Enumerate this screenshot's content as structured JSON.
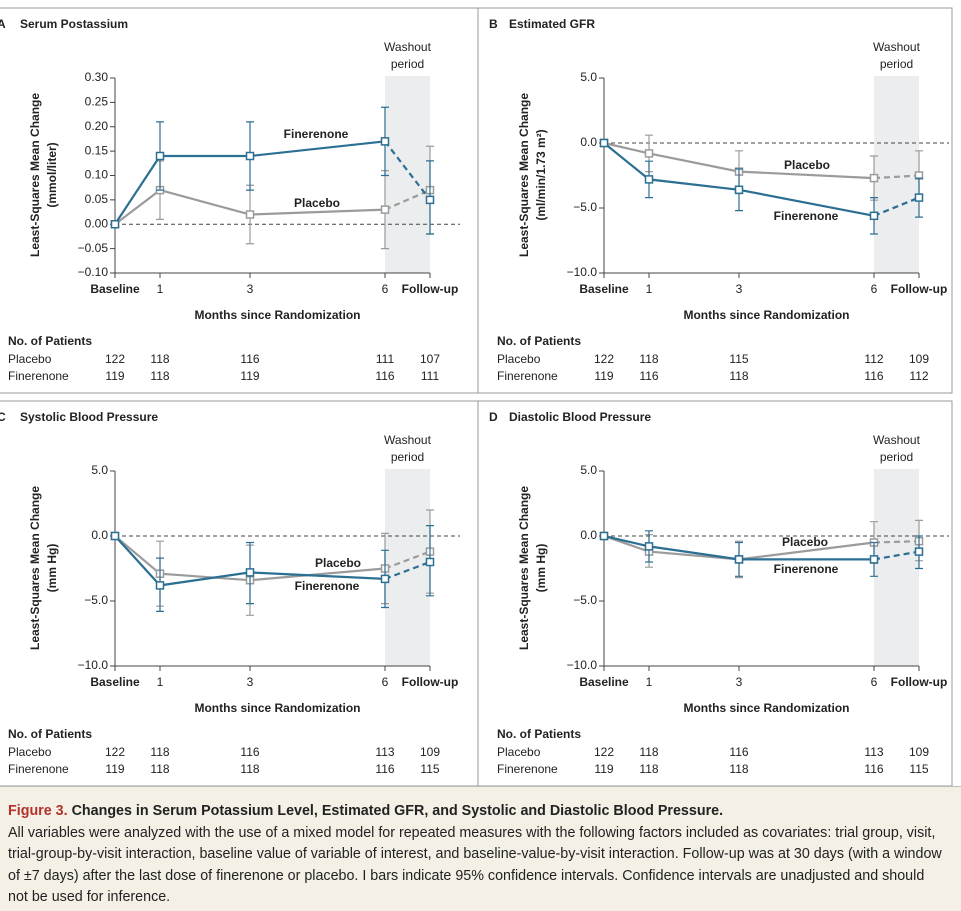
{
  "chart_data": [
    {
      "type": "line",
      "panel": "A",
      "title": "Serum Postassium",
      "ylabel": [
        "Least-Squares Mean Change",
        "(mmol/liter)"
      ],
      "xlabel": "Months since Randomization",
      "x": [
        0,
        1,
        3,
        6,
        7
      ],
      "xlim": [
        0,
        7
      ],
      "xticks": [
        {
          "value": 0,
          "label": "Baseline"
        },
        1,
        3,
        6,
        {
          "value": 7,
          "label": "Follow-up"
        }
      ],
      "ylim": [
        -0.1,
        0.3
      ],
      "yticks": [
        {
          "value": -0.1,
          "label": "−0.10"
        },
        {
          "value": -0.05,
          "label": "−0.05"
        },
        {
          "value": 0,
          "label": "0.00"
        },
        {
          "value": 0.05,
          "label": "0.05"
        },
        {
          "value": 0.1,
          "label": "0.10"
        },
        {
          "value": 0.15,
          "label": "0.15"
        },
        {
          "value": 0.2,
          "label": "0.20"
        },
        {
          "value": 0.25,
          "label": "0.25"
        },
        {
          "value": 0.3,
          "label": "0.30"
        }
      ],
      "zero_line": true,
      "dashed_after": 6,
      "washout": {
        "label": [
          "Washout",
          "period"
        ],
        "x": [
          6,
          7
        ]
      },
      "series": [
        {
          "name": "Placebo",
          "color": "#9b9b9b",
          "values": [
            0,
            0.07,
            0.02,
            0.03,
            0.07
          ],
          "ci": [
            null,
            [
              0.01,
              0.13
            ],
            [
              -0.04,
              0.08
            ],
            [
              -0.05,
              0.11
            ],
            [
              -0.02,
              0.16
            ]
          ]
        },
        {
          "name": "Finerenone",
          "color": "#2b6f92",
          "values": [
            0,
            0.14,
            0.14,
            0.17,
            0.05
          ],
          "ci": [
            null,
            [
              0.07,
              0.21
            ],
            [
              0.07,
              0.21
            ],
            [
              0.1,
              0.24
            ],
            [
              -0.02,
              0.13
            ]
          ]
        }
      ],
      "patients": {
        "title": "No. of Patients",
        "rows": [
          {
            "name": "Placebo",
            "counts": [
              122,
              118,
              116,
              111,
              107
            ]
          },
          {
            "name": "Finerenone",
            "counts": [
              119,
              118,
              119,
              116,
              111
            ]
          }
        ]
      }
    },
    {
      "type": "line",
      "panel": "B",
      "title": "Estimated GFR",
      "ylabel": [
        "Least-Squares Mean Change",
        "(ml/min/1.73 m²)"
      ],
      "xlabel": "Months since Randomization",
      "x": [
        0,
        1,
        3,
        6,
        7
      ],
      "xlim": [
        0,
        7
      ],
      "xticks": [
        {
          "value": 0,
          "label": "Baseline"
        },
        1,
        3,
        6,
        {
          "value": 7,
          "label": "Follow-up"
        }
      ],
      "ylim": [
        -10,
        5
      ],
      "yticks": [
        {
          "value": -10,
          "label": "−10.0"
        },
        {
          "value": -5,
          "label": "−5.0"
        },
        {
          "value": 0,
          "label": "0.0"
        },
        {
          "value": 5,
          "label": "5.0"
        }
      ],
      "zero_line": true,
      "dashed_after": 6,
      "washout": {
        "label": [
          "Washout",
          "period"
        ],
        "x": [
          6,
          7
        ]
      },
      "series": [
        {
          "name": "Placebo",
          "color": "#9b9b9b",
          "values": [
            0,
            -0.8,
            -2.2,
            -2.7,
            -2.5
          ],
          "ci": [
            null,
            [
              -2.2,
              0.6
            ],
            [
              -3.9,
              -0.6
            ],
            [
              -4.4,
              -1.0
            ],
            [
              -4.4,
              -0.6
            ]
          ]
        },
        {
          "name": "Finerenone",
          "color": "#2b6f92",
          "values": [
            0,
            -2.8,
            -3.6,
            -5.6,
            -4.2
          ],
          "ci": [
            null,
            [
              -4.2,
              -1.4
            ],
            [
              -5.2,
              -2.0
            ],
            [
              -7.0,
              -4.2
            ],
            [
              -5.7,
              -2.7
            ]
          ]
        }
      ],
      "patients": {
        "title": "No. of Patients",
        "rows": [
          {
            "name": "Placebo",
            "counts": [
              122,
              118,
              115,
              112,
              109
            ]
          },
          {
            "name": "Finerenone",
            "counts": [
              119,
              116,
              118,
              116,
              112
            ]
          }
        ]
      }
    },
    {
      "type": "line",
      "panel": "C",
      "title": "Systolic Blood Pressure",
      "ylabel": [
        "Least-Squares Mean Change",
        "(mm Hg)"
      ],
      "xlabel": "Months since Randomization",
      "x": [
        0,
        1,
        3,
        6,
        7
      ],
      "xlim": [
        0,
        7
      ],
      "xticks": [
        {
          "value": 0,
          "label": "Baseline"
        },
        1,
        3,
        6,
        {
          "value": 7,
          "label": "Follow-up"
        }
      ],
      "ylim": [
        -10,
        5
      ],
      "yticks": [
        {
          "value": -10,
          "label": "−10.0"
        },
        {
          "value": -5,
          "label": "−5.0"
        },
        {
          "value": 0,
          "label": "0.0"
        },
        {
          "value": 5,
          "label": "5.0"
        }
      ],
      "zero_line": true,
      "dashed_after": 6,
      "washout": {
        "label": [
          "Washout",
          "period"
        ],
        "x": [
          6,
          7
        ]
      },
      "series": [
        {
          "name": "Placebo",
          "color": "#9b9b9b",
          "values": [
            0,
            -2.9,
            -3.4,
            -2.5,
            -1.2
          ],
          "ci": [
            null,
            [
              -5.4,
              -0.4
            ],
            [
              -6.1,
              -0.7
            ],
            [
              -5.2,
              0.2
            ],
            [
              -4.4,
              2.0
            ]
          ]
        },
        {
          "name": "Finerenone",
          "color": "#2b6f92",
          "values": [
            0,
            -3.8,
            -2.8,
            -3.3,
            -2.0
          ],
          "ci": [
            null,
            [
              -5.8,
              -1.7
            ],
            [
              -5.2,
              -0.5
            ],
            [
              -5.5,
              -1.1
            ],
            [
              -4.6,
              0.8
            ]
          ]
        }
      ],
      "patients": {
        "title": "No. of Patients",
        "rows": [
          {
            "name": "Placebo",
            "counts": [
              122,
              118,
              116,
              113,
              109
            ]
          },
          {
            "name": "Finerenone",
            "counts": [
              119,
              118,
              118,
              116,
              115
            ]
          }
        ]
      }
    },
    {
      "type": "line",
      "panel": "D",
      "title": "Diastolic Blood Pressure",
      "ylabel": [
        "Least-Squares Mean Change",
        "(mm Hg)"
      ],
      "xlabel": "Months since Randomization",
      "x": [
        0,
        1,
        3,
        6,
        7
      ],
      "xlim": [
        0,
        7
      ],
      "xticks": [
        {
          "value": 0,
          "label": "Baseline"
        },
        1,
        3,
        6,
        {
          "value": 7,
          "label": "Follow-up"
        }
      ],
      "ylim": [
        -10,
        5
      ],
      "yticks": [
        {
          "value": -10,
          "label": "−10.0"
        },
        {
          "value": -5,
          "label": "−5.0"
        },
        {
          "value": 0,
          "label": "0.0"
        },
        {
          "value": 5,
          "label": "5.0"
        }
      ],
      "zero_line": true,
      "dashed_after": 6,
      "washout": {
        "label": [
          "Washout",
          "period"
        ],
        "x": [
          6,
          7
        ]
      },
      "series": [
        {
          "name": "Placebo",
          "color": "#9b9b9b",
          "values": [
            0,
            -1.2,
            -1.8,
            -0.5,
            -0.4
          ],
          "ci": [
            null,
            [
              -2.4,
              0.1
            ],
            [
              -3.2,
              -0.4
            ],
            [
              -2.1,
              1.1
            ],
            [
              -1.9,
              1.2
            ]
          ]
        },
        {
          "name": "Finerenone",
          "color": "#2b6f92",
          "values": [
            0,
            -0.8,
            -1.8,
            -1.8,
            -1.2
          ],
          "ci": [
            null,
            [
              -2.0,
              0.4
            ],
            [
              -3.1,
              -0.5
            ],
            [
              -3.1,
              -0.5
            ],
            [
              -2.5,
              0.0
            ]
          ]
        }
      ],
      "patients": {
        "title": "No. of Patients",
        "rows": [
          {
            "name": "Placebo",
            "counts": [
              122,
              118,
              116,
              113,
              109
            ]
          },
          {
            "name": "Finerenone",
            "counts": [
              119,
              118,
              118,
              116,
              115
            ]
          }
        ]
      }
    }
  ],
  "caption": {
    "label": "Figure 3.",
    "title": "Changes in Serum Potassium Level, Estimated GFR, and Systolic and Diastolic Blood Pressure.",
    "text": "All variables were analyzed with the use of a mixed model for repeated measures with the following factors included as covariates: trial group, visit, trial-group-by-visit interaction, baseline value of variable of interest, and baseline-value-by-visit interaction. Follow-up was at 30 days (with a window of ±7 days) after the last dose of finerenone or placebo. I bars indicate 95% confidence intervals. Confidence intervals are unadjusted and should not be used for inference."
  }
}
